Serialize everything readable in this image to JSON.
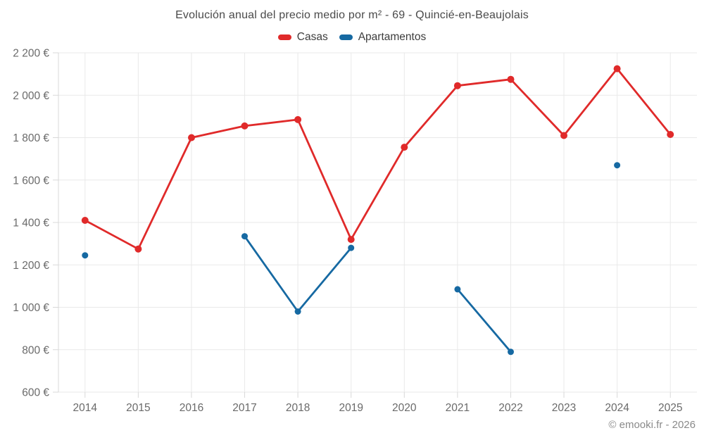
{
  "title": "Evolución anual del precio medio por m² - 69 - Quincié-en-Beaujolais",
  "legend": [
    {
      "label": "Casas",
      "color": "#e02a2a"
    },
    {
      "label": "Apartamentos",
      "color": "#1669a2"
    }
  ],
  "copyright": "© emooki.fr - 2026",
  "colors": {
    "background": "#ffffff",
    "grid": "#e9e9e9",
    "axis": "#d8d8d8",
    "tick_label": "#6a6a6a",
    "title": "#4a4a4a",
    "legend_text": "#3d3d3d",
    "copyright": "#8a8a8a",
    "casas": "#e02a2a",
    "apartamentos": "#1669a2"
  },
  "chart_data": {
    "type": "line",
    "title": "Evolución anual del precio medio por m² - 69 - Quincié-en-Beaujolais",
    "categories": [
      "2014",
      "2015",
      "2016",
      "2017",
      "2018",
      "2019",
      "2020",
      "2021",
      "2022",
      "2023",
      "2024",
      "2025"
    ],
    "series": [
      {
        "name": "Casas",
        "color": "#e02a2a",
        "values": [
          1410,
          1275,
          1800,
          1855,
          1885,
          1320,
          1755,
          2045,
          2075,
          1810,
          2125,
          1815
        ]
      },
      {
        "name": "Apartamentos",
        "color": "#1669a2",
        "values": [
          1245,
          null,
          null,
          1335,
          980,
          1280,
          null,
          1085,
          790,
          null,
          1670,
          null
        ]
      }
    ],
    "xlabel": "",
    "ylabel": "",
    "ylim": [
      600,
      2200
    ],
    "y_tick_step": 200,
    "y_tick_labels": [
      "600 €",
      "800 €",
      "1 000 €",
      "1 200 €",
      "1 400 €",
      "1 600 €",
      "1 800 €",
      "2 000 €",
      "2 200 €"
    ],
    "grid": true,
    "legend_position": "top",
    "currency_suffix": " €"
  }
}
